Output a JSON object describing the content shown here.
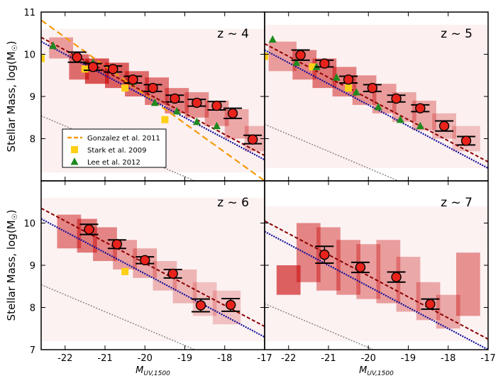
{
  "chart_data": {
    "type": "scatter",
    "figure_layout": "2x2 grid of panels with shared axes",
    "ylabel": "Stellar Mass, log(M",
    "ylabel_sub": "☉",
    "xlabel_main": "M",
    "xlabel_sub": "UV,1500",
    "xlim": [
      -22.6,
      -17.0
    ],
    "ylim": [
      7.0,
      11.0
    ],
    "x_ticks": [
      -22,
      -21,
      -20,
      -19,
      -18,
      -17
    ],
    "x_tick_labels": [
      "-22",
      "-21",
      "-20",
      "-19",
      "-18",
      "-17"
    ],
    "y_ticks_top": [
      8,
      9,
      10,
      11
    ],
    "y_ticks_bottom": [
      7,
      8,
      9,
      10
    ],
    "y_tick_labels": {
      "7": "7",
      "8": "8",
      "9": "9",
      "10": "10",
      "11": "11"
    },
    "colors": {
      "points": "#e8231c",
      "gonzalez": "#f59a0c",
      "stark": "#fdd017",
      "lee": "#1f8a1f",
      "fit": "#0d0d9c",
      "fit_alt": "#8b0000",
      "reference": "#888888",
      "density": "#c80000"
    },
    "legend": {
      "position": "lower-left of z ~ 4 panel",
      "entries": [
        {
          "label": "Gonzalez et al. 2011",
          "marker": "dashed-line",
          "color": "#f59a0c"
        },
        {
          "label": "Stark et al. 2009",
          "marker": "square",
          "color": "#fdd017"
        },
        {
          "label": "Lee et al. 2012",
          "marker": "triangle",
          "color": "#1f8a1f"
        }
      ]
    },
    "panels": [
      {
        "label": "z ~ 4",
        "points": {
          "x": [
            -21.7,
            -21.3,
            -20.8,
            -20.3,
            -19.8,
            -19.25,
            -18.7,
            -18.2,
            -17.8,
            -17.3
          ],
          "y": [
            9.93,
            9.7,
            9.65,
            9.4,
            9.2,
            8.95,
            8.85,
            8.78,
            8.6,
            7.98
          ],
          "yerr": [
            0.12,
            0.08,
            0.07,
            0.08,
            0.08,
            0.08,
            0.08,
            0.1,
            0.12,
            0.1
          ]
        },
        "fit_line": {
          "slope": -0.5,
          "intercept": -1.0
        },
        "fit_line_alt": {
          "slope": -0.5,
          "intercept": -0.9
        },
        "reference_line": {
          "slope": -0.4,
          "intercept": -0.5
        },
        "gonzalez_line": {
          "slope": -0.68,
          "intercept": -4.56
        },
        "stark": {
          "x": [
            -22.6,
            -21.5,
            -20.5,
            -19.5
          ],
          "y": [
            9.9,
            9.65,
            9.2,
            8.45
          ]
        },
        "lee": {
          "x": [
            -22.3,
            -21.3,
            -20.3,
            -19.75,
            -19.2,
            -18.7,
            -18.2
          ],
          "y": [
            10.2,
            9.8,
            9.35,
            8.85,
            8.65,
            8.4,
            8.3
          ]
        },
        "density": [
          {
            "x0": -22.4,
            "x1": -21.8,
            "y0": 9.9,
            "y1": 10.4,
            "a": 0.35
          },
          {
            "x0": -21.9,
            "x1": -21.4,
            "y0": 9.4,
            "y1": 10.0,
            "a": 0.55
          },
          {
            "x0": -21.5,
            "x1": -20.9,
            "y0": 9.3,
            "y1": 9.9,
            "a": 0.65
          },
          {
            "x0": -21.0,
            "x1": -20.4,
            "y0": 9.2,
            "y1": 9.8,
            "a": 0.6
          },
          {
            "x0": -20.5,
            "x1": -19.9,
            "y0": 9.0,
            "y1": 9.6,
            "a": 0.55
          },
          {
            "x0": -20.0,
            "x1": -19.4,
            "y0": 8.8,
            "y1": 9.45,
            "a": 0.5
          },
          {
            "x0": -19.5,
            "x1": -18.9,
            "y0": 8.6,
            "y1": 9.2,
            "a": 0.45
          },
          {
            "x0": -19.0,
            "x1": -18.4,
            "y0": 8.5,
            "y1": 9.1,
            "a": 0.4
          },
          {
            "x0": -18.5,
            "x1": -17.9,
            "y0": 8.3,
            "y1": 8.9,
            "a": 0.35
          },
          {
            "x0": -18.0,
            "x1": -17.4,
            "y0": 8.0,
            "y1": 8.7,
            "a": 0.3
          },
          {
            "x0": -17.5,
            "x1": -17.0,
            "y0": 7.7,
            "y1": 8.3,
            "a": 0.25
          },
          {
            "x0": -22.6,
            "x1": -17.0,
            "y0": 7.2,
            "y1": 10.6,
            "a": 0.06
          }
        ]
      },
      {
        "label": "z ~ 5",
        "points": {
          "x": [
            -21.7,
            -21.1,
            -20.5,
            -19.9,
            -19.3,
            -18.7,
            -18.1,
            -17.55
          ],
          "y": [
            9.98,
            9.78,
            9.4,
            9.2,
            8.95,
            8.72,
            8.3,
            7.95
          ],
          "yerr": [
            0.12,
            0.08,
            0.08,
            0.08,
            0.08,
            0.08,
            0.12,
            0.1
          ]
        },
        "fit_line": {
          "slope": -0.5,
          "intercept": -1.2
        },
        "fit_line_alt": {
          "slope": -0.5,
          "intercept": -1.05
        },
        "reference_line": {
          "slope": -0.4,
          "intercept": -0.7
        },
        "stark": {
          "x": [
            -22.6,
            -21.4,
            -20.5
          ],
          "y": [
            9.95,
            9.7,
            9.2
          ]
        },
        "lee": {
          "x": [
            -22.4,
            -21.8,
            -21.3,
            -20.8,
            -20.3,
            -19.75,
            -19.2,
            -18.7
          ],
          "y": [
            10.35,
            9.8,
            9.7,
            9.45,
            9.1,
            8.75,
            8.45,
            8.3
          ]
        },
        "density": [
          {
            "x0": -22.5,
            "x1": -21.8,
            "y0": 9.6,
            "y1": 10.3,
            "a": 0.35
          },
          {
            "x0": -21.9,
            "x1": -21.3,
            "y0": 9.4,
            "y1": 10.1,
            "a": 0.45
          },
          {
            "x0": -21.4,
            "x1": -20.8,
            "y0": 9.2,
            "y1": 9.9,
            "a": 0.5
          },
          {
            "x0": -20.9,
            "x1": -20.3,
            "y0": 9.0,
            "y1": 9.7,
            "a": 0.45
          },
          {
            "x0": -20.4,
            "x1": -19.8,
            "y0": 8.8,
            "y1": 9.5,
            "a": 0.4
          },
          {
            "x0": -19.9,
            "x1": -19.3,
            "y0": 8.6,
            "y1": 9.3,
            "a": 0.35
          },
          {
            "x0": -19.4,
            "x1": -18.8,
            "y0": 8.4,
            "y1": 9.1,
            "a": 0.3
          },
          {
            "x0": -18.9,
            "x1": -18.3,
            "y0": 8.2,
            "y1": 8.9,
            "a": 0.3
          },
          {
            "x0": -18.4,
            "x1": -17.8,
            "y0": 8.0,
            "y1": 8.6,
            "a": 0.25
          },
          {
            "x0": -17.9,
            "x1": -17.2,
            "y0": 7.7,
            "y1": 8.3,
            "a": 0.2
          },
          {
            "x0": -22.6,
            "x1": -17.0,
            "y0": 7.3,
            "y1": 10.7,
            "a": 0.06
          }
        ]
      },
      {
        "label": "z ~ 6",
        "points": {
          "x": [
            -21.4,
            -20.7,
            -20.0,
            -19.3,
            -18.6,
            -17.85
          ],
          "y": [
            9.85,
            9.5,
            9.12,
            8.8,
            8.05,
            8.06
          ],
          "yerr": [
            0.12,
            0.1,
            0.08,
            0.1,
            0.15,
            0.15
          ]
        },
        "fit_line": {
          "slope": -0.5,
          "intercept": -1.2
        },
        "fit_line_alt": {
          "slope": -0.5,
          "intercept": -0.95
        },
        "reference_line": {
          "slope": -0.4,
          "intercept": -0.5
        },
        "stark": {
          "x": [
            -20.5
          ],
          "y": [
            8.85
          ]
        },
        "lee": {
          "x": [],
          "y": []
        },
        "density": [
          {
            "x0": -22.2,
            "x1": -21.6,
            "y0": 9.4,
            "y1": 10.2,
            "a": 0.45
          },
          {
            "x0": -21.7,
            "x1": -21.2,
            "y0": 9.3,
            "y1": 10.1,
            "a": 0.5
          },
          {
            "x0": -21.3,
            "x1": -20.7,
            "y0": 9.1,
            "y1": 9.9,
            "a": 0.45
          },
          {
            "x0": -20.8,
            "x1": -20.2,
            "y0": 8.9,
            "y1": 9.6,
            "a": 0.35
          },
          {
            "x0": -20.3,
            "x1": -19.7,
            "y0": 8.7,
            "y1": 9.4,
            "a": 0.3
          },
          {
            "x0": -19.8,
            "x1": -19.2,
            "y0": 8.4,
            "y1": 9.1,
            "a": 0.25
          },
          {
            "x0": -19.3,
            "x1": -18.7,
            "y0": 8.1,
            "y1": 8.9,
            "a": 0.25
          },
          {
            "x0": -18.8,
            "x1": -18.2,
            "y0": 7.8,
            "y1": 8.6,
            "a": 0.2
          },
          {
            "x0": -18.3,
            "x1": -17.6,
            "y0": 7.6,
            "y1": 8.4,
            "a": 0.2
          },
          {
            "x0": -22.6,
            "x1": -17.0,
            "y0": 7.2,
            "y1": 10.6,
            "a": 0.05
          }
        ]
      },
      {
        "label": "z ~ 7",
        "points": {
          "x": [
            -21.1,
            -20.2,
            -19.3,
            -18.45
          ],
          "y": [
            9.25,
            8.95,
            8.72,
            8.08
          ],
          "yerr": [
            0.2,
            0.12,
            0.12,
            0.12
          ]
        },
        "fit_line": {
          "slope": -0.5,
          "intercept": -1.5
        },
        "fit_line_alt": {
          "slope": -0.5,
          "intercept": -1.25
        },
        "reference_line": {
          "slope": -0.4,
          "intercept": -0.95
        },
        "stark": {
          "x": [],
          "y": []
        },
        "lee": {
          "x": [],
          "y": []
        },
        "density": [
          {
            "x0": -22.3,
            "x1": -21.7,
            "y0": 8.3,
            "y1": 9.0,
            "a": 0.6
          },
          {
            "x0": -21.8,
            "x1": -21.2,
            "y0": 8.6,
            "y1": 10.0,
            "a": 0.45
          },
          {
            "x0": -21.3,
            "x1": -20.7,
            "y0": 8.4,
            "y1": 9.9,
            "a": 0.4
          },
          {
            "x0": -20.8,
            "x1": -20.2,
            "y0": 8.3,
            "y1": 9.6,
            "a": 0.4
          },
          {
            "x0": -20.3,
            "x1": -19.7,
            "y0": 8.2,
            "y1": 9.5,
            "a": 0.35
          },
          {
            "x0": -19.8,
            "x1": -19.2,
            "y0": 8.1,
            "y1": 9.6,
            "a": 0.35
          },
          {
            "x0": -19.3,
            "x1": -18.7,
            "y0": 7.9,
            "y1": 9.2,
            "a": 0.3
          },
          {
            "x0": -18.8,
            "x1": -18.2,
            "y0": 7.7,
            "y1": 8.6,
            "a": 0.3
          },
          {
            "x0": -18.3,
            "x1": -17.7,
            "y0": 7.5,
            "y1": 8.3,
            "a": 0.3
          },
          {
            "x0": -17.8,
            "x1": -17.2,
            "y0": 7.8,
            "y1": 9.3,
            "a": 0.4
          },
          {
            "x0": -22.6,
            "x1": -17.0,
            "y0": 7.2,
            "y1": 10.4,
            "a": 0.05
          }
        ]
      }
    ]
  }
}
